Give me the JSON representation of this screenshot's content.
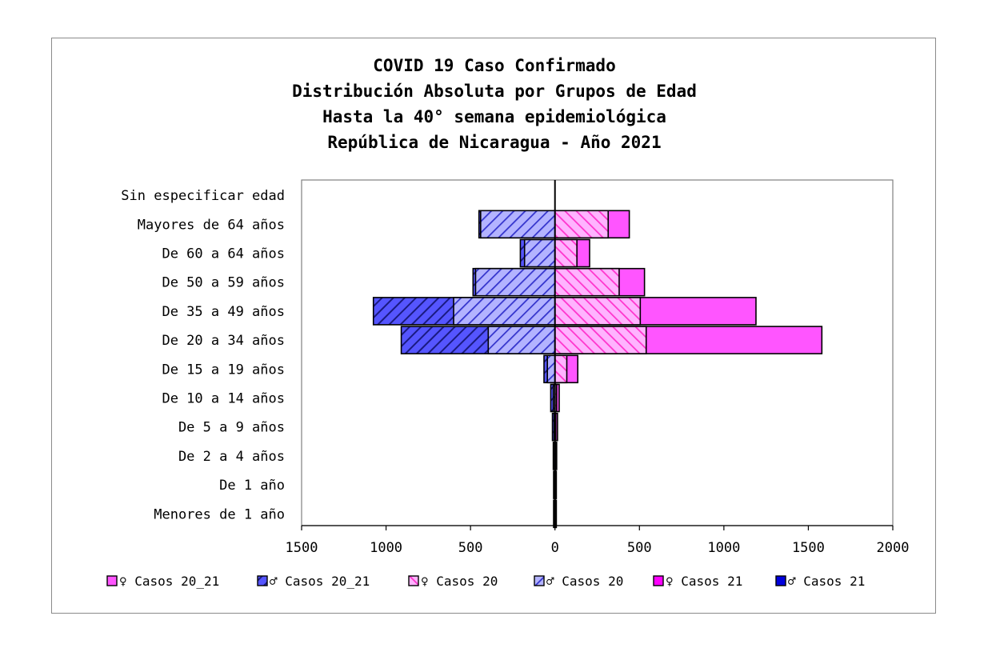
{
  "chart_data": {
    "type": "bar",
    "orientation": "horizontal-population-pyramid",
    "title_lines": [
      "COVID 19 Caso Confirmado",
      "Distribución Absoluta por Grupos de Edad",
      "Hasta la 40° semana epidemiológica",
      "República de Nicaragua - Año 2021"
    ],
    "categories": [
      "Sin especificar edad",
      "Mayores de 64 años",
      "De 60 a 64 años",
      "De 50 a 59 años",
      "De 35 a 49 años",
      "De 20 a 34 años",
      "De 15 a 19 años",
      "De 10 a 14 años",
      "De 5 a 9 años",
      "De 2 a 4 años",
      "De 1 año",
      "Menores de 1 año"
    ],
    "series": [
      {
        "name": "♀ Casos 20_21",
        "side": "right",
        "color": "#ff55ff",
        "pattern": "none",
        "values": [
          0,
          440,
          205,
          530,
          1190,
          1580,
          135,
          25,
          15,
          10,
          8,
          8
        ]
      },
      {
        "name": "♂ Casos 20_21",
        "side": "left",
        "color": "#5555ff",
        "pattern": "hatch",
        "values": [
          0,
          450,
          205,
          485,
          1075,
          910,
          65,
          25,
          15,
          10,
          8,
          8
        ]
      },
      {
        "name": "♀ Casos 20",
        "side": "right",
        "color": "#ff99ff",
        "pattern": "hatch",
        "values": [
          0,
          315,
          130,
          380,
          505,
          540,
          70,
          10,
          5,
          3,
          2,
          2
        ]
      },
      {
        "name": "♂ Casos 20",
        "side": "left",
        "color": "#9999ff",
        "pattern": "hatch",
        "values": [
          0,
          440,
          180,
          470,
          600,
          395,
          45,
          10,
          5,
          3,
          2,
          2
        ]
      },
      {
        "name": "♀ Casos 21",
        "side": "right",
        "color": "#ff00ff",
        "pattern": "none",
        "values": [
          0,
          125,
          75,
          150,
          685,
          1040,
          65,
          15,
          10,
          7,
          6,
          6
        ]
      },
      {
        "name": "♂ Casos 21",
        "side": "left",
        "color": "#0000dd",
        "pattern": "none",
        "values": [
          0,
          10,
          25,
          15,
          475,
          515,
          20,
          15,
          10,
          7,
          6,
          6
        ]
      }
    ],
    "legend_order": [
      0,
      1,
      2,
      3,
      4,
      5
    ],
    "xlim": [
      -1500,
      2000
    ],
    "x_ticks": [
      -1500,
      -1000,
      -500,
      0,
      500,
      1000,
      1500,
      2000
    ],
    "x_tick_labels": [
      "1500",
      "1000",
      "500",
      "0",
      "500",
      "1000",
      "1500",
      "2000"
    ],
    "grid": false,
    "legend_position": "bottom"
  }
}
